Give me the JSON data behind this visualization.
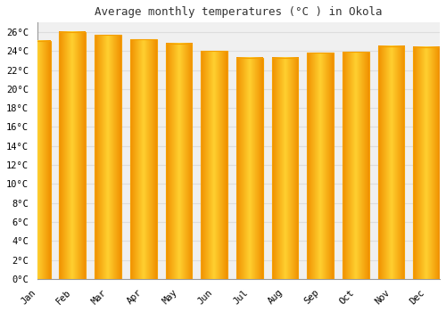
{
  "title": "Average monthly temperatures (°C ) in Okola",
  "months": [
    "Jan",
    "Feb",
    "Mar",
    "Apr",
    "May",
    "Jun",
    "Jul",
    "Aug",
    "Sep",
    "Oct",
    "Nov",
    "Dec"
  ],
  "values": [
    25.1,
    26.0,
    25.7,
    25.2,
    24.8,
    24.0,
    23.3,
    23.3,
    23.8,
    23.9,
    24.5,
    24.4
  ],
  "bar_color_center": "#FFD000",
  "bar_color_edge": "#F5A000",
  "background_color": "#FFFFFF",
  "plot_bg_color": "#F0F0F0",
  "grid_color": "#DDDDDD",
  "ylim": [
    0,
    27
  ],
  "yticks": [
    0,
    2,
    4,
    6,
    8,
    10,
    12,
    14,
    16,
    18,
    20,
    22,
    24,
    26
  ],
  "title_fontsize": 9,
  "tick_fontsize": 7.5,
  "font_family": "monospace"
}
